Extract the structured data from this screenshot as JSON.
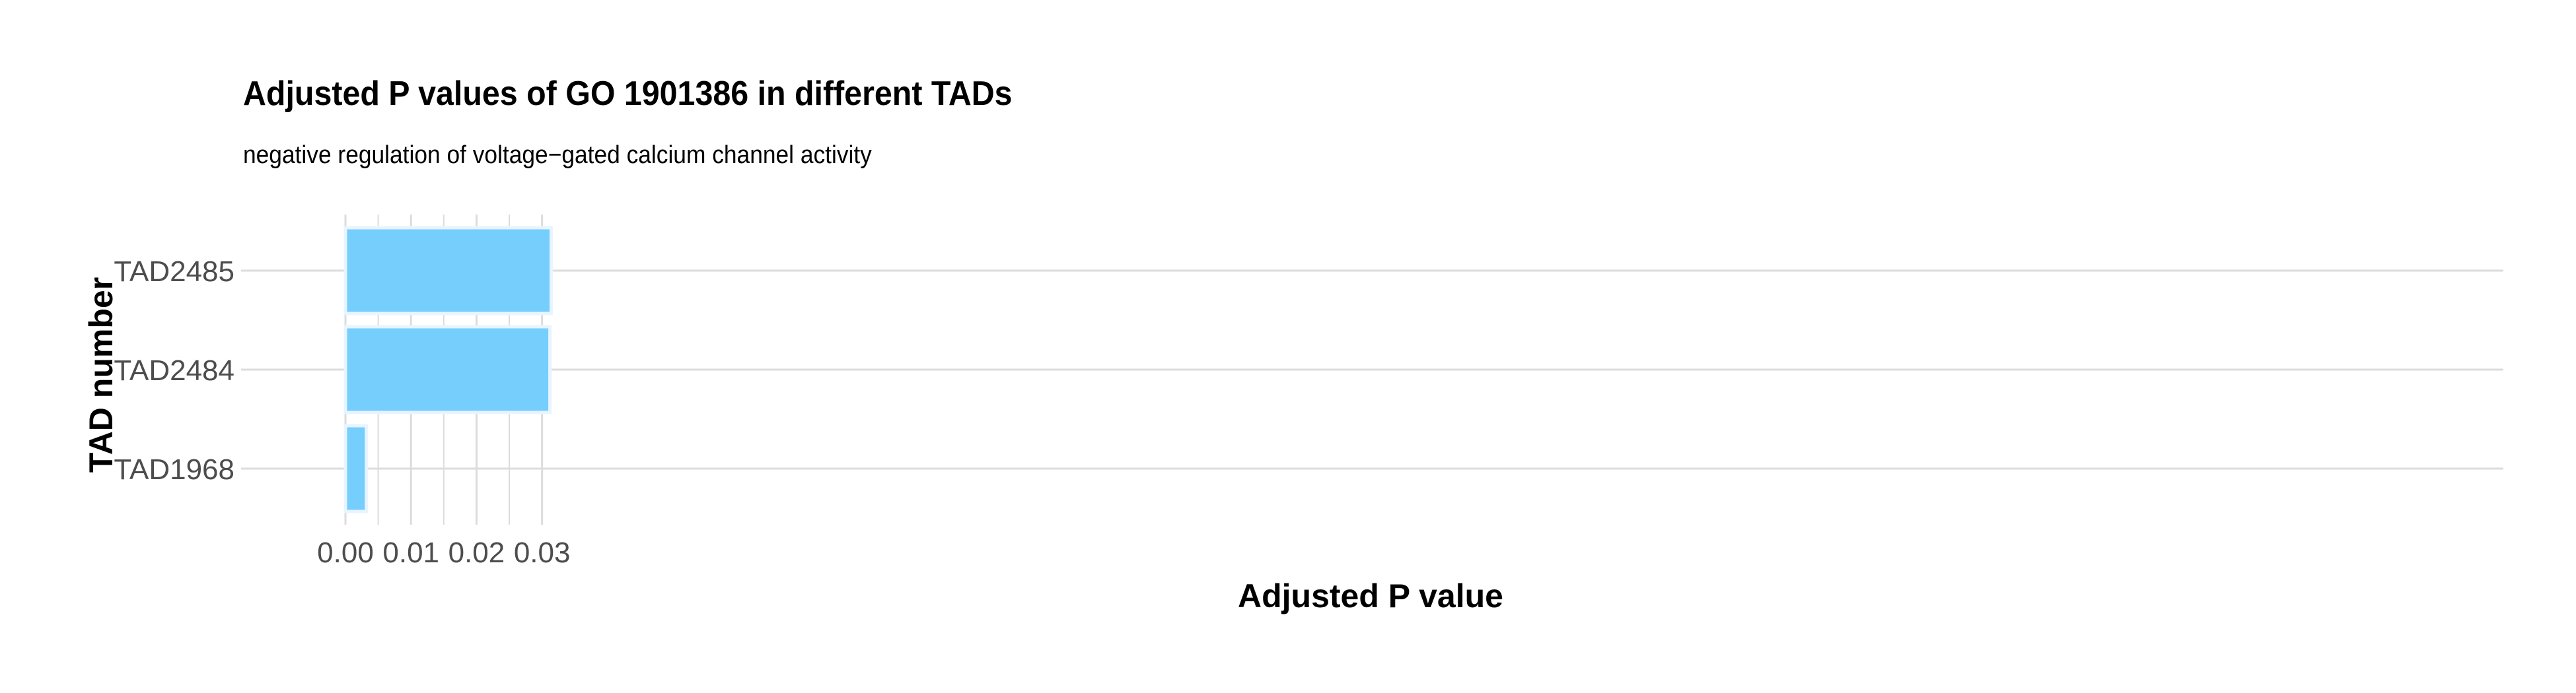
{
  "chart_data": {
    "type": "bar",
    "orientation": "horizontal",
    "title": "Adjusted P values of GO 1901386 in different TADs",
    "subtitle": "negative regulation of voltage−gated calcium channel activity",
    "xlabel": "Adjusted P value",
    "ylabel": "TAD number",
    "categories": [
      "TAD2485",
      "TAD2484",
      "TAD1968"
    ],
    "values": [
      0.0314,
      0.0312,
      0.0032
    ],
    "xlim": [
      -0.0016,
      0.0313
    ],
    "x_ticks": [
      0.0,
      0.01,
      0.02,
      0.03
    ],
    "x_tick_labels": [
      "0.00",
      "0.01",
      "0.02",
      "0.03"
    ],
    "grid": true,
    "bar_color": "#75CEFB",
    "bar_edge_color": "#E8F4FF",
    "grid_color": "#DCDCDC",
    "legend": "none"
  }
}
